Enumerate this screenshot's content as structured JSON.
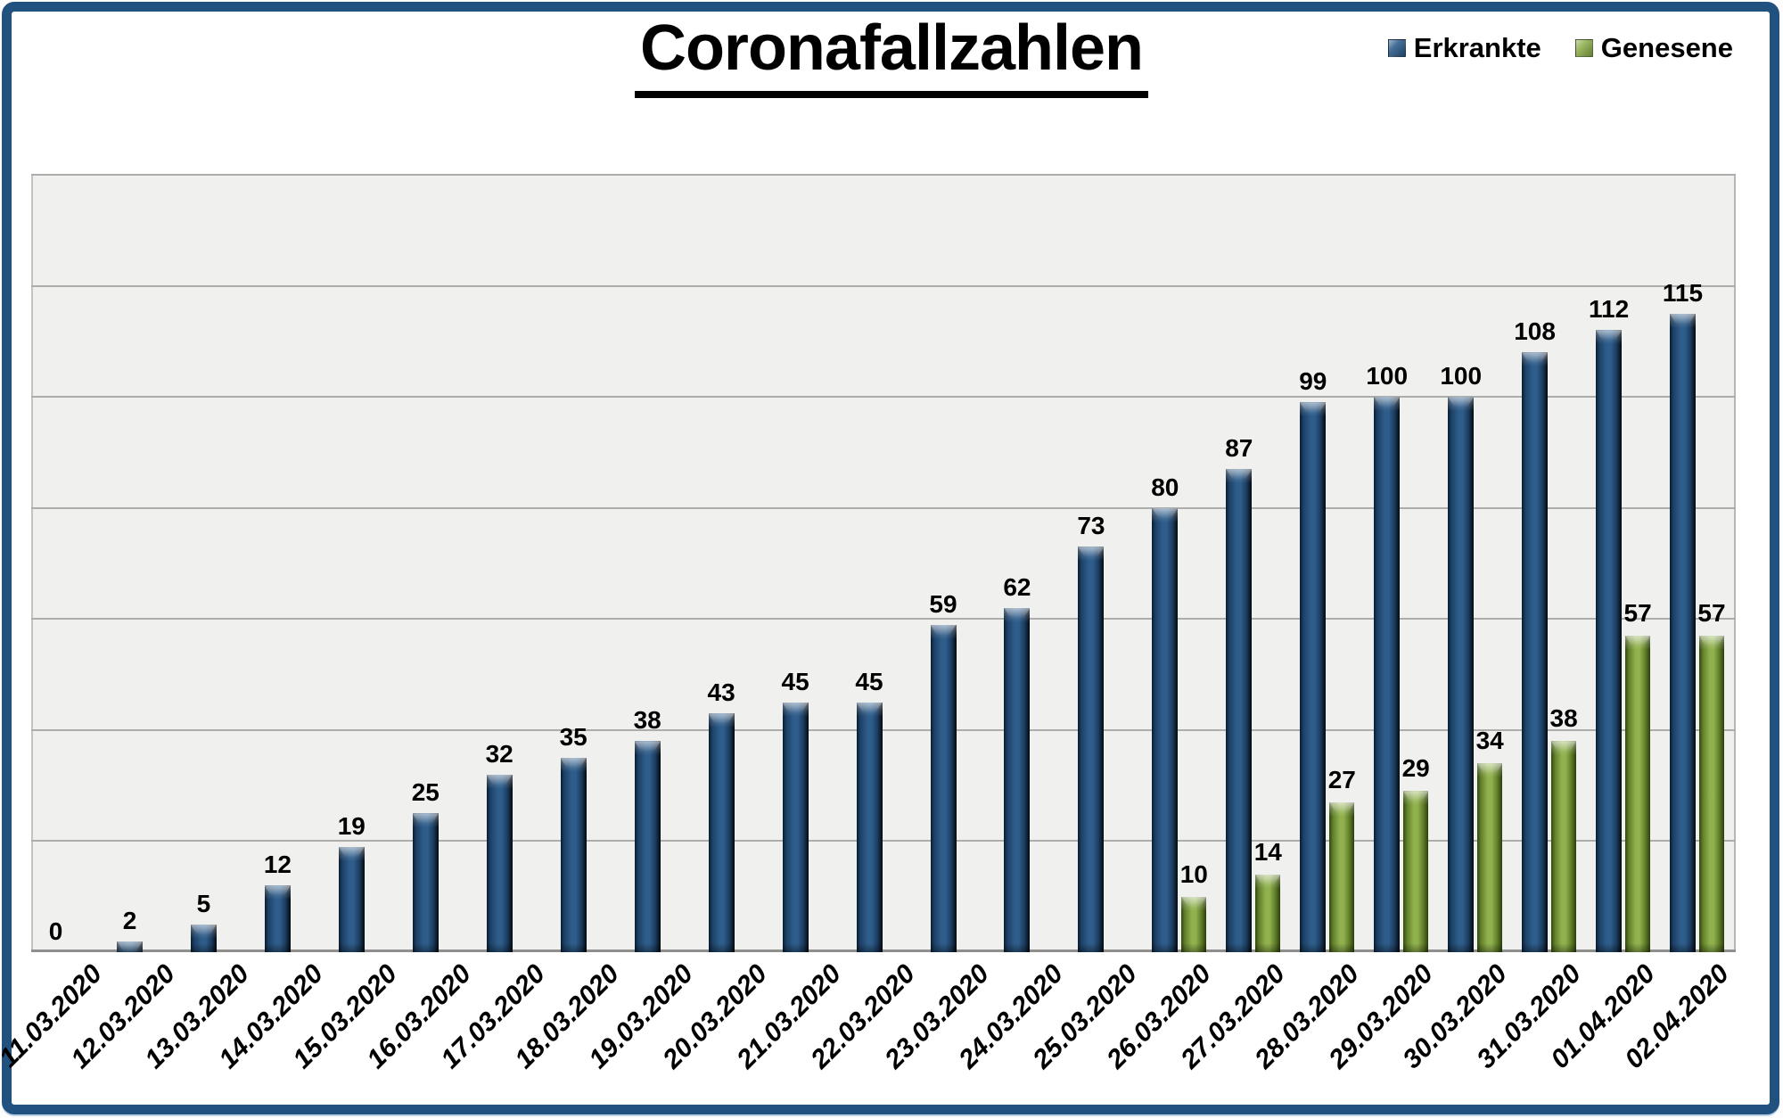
{
  "title": "Coronafallzahlen",
  "colors": {
    "frame_border": "#21517e",
    "erkrankte_bar": "#2e5d8b",
    "genesene_bar": "#90b14e",
    "plot_background": "#f0f0ee",
    "gridline": "#adadab",
    "text": "#000000"
  },
  "chart_data": {
    "type": "bar",
    "title": "Coronafallzahlen",
    "categories": [
      "11.03.2020",
      "12.03.2020",
      "13.03.2020",
      "14.03.2020",
      "15.03.2020",
      "16.03.2020",
      "17.03.2020",
      "18.03.2020",
      "19.03.2020",
      "20.03.2020",
      "21.03.2020",
      "22.03.2020",
      "23.03.2020",
      "24.03.2020",
      "25.03.2020",
      "26.03.2020",
      "27.03.2020",
      "28.03.2020",
      "29.03.2020",
      "30.03.2020",
      "31.03.2020",
      "01.04.2020",
      "02.04.2020"
    ],
    "series": [
      {
        "name": "Erkrankte",
        "color": "#2e5d8b",
        "values": [
          0,
          2,
          5,
          12,
          19,
          25,
          32,
          35,
          38,
          43,
          45,
          45,
          59,
          62,
          73,
          80,
          87,
          99,
          100,
          100,
          108,
          112,
          115
        ]
      },
      {
        "name": "Genesene",
        "color": "#90b14e",
        "values": [
          null,
          null,
          null,
          null,
          null,
          null,
          null,
          null,
          null,
          null,
          null,
          null,
          null,
          null,
          null,
          10,
          14,
          27,
          29,
          34,
          38,
          57,
          57
        ]
      }
    ],
    "xlabel": "",
    "ylabel": "",
    "ylim": [
      0,
      140
    ],
    "ytick_step": 20,
    "y_axis_labels_visible": false,
    "grid": true,
    "data_labels": true,
    "legend_position": "top-right",
    "x_label_rotation_deg": 45
  }
}
